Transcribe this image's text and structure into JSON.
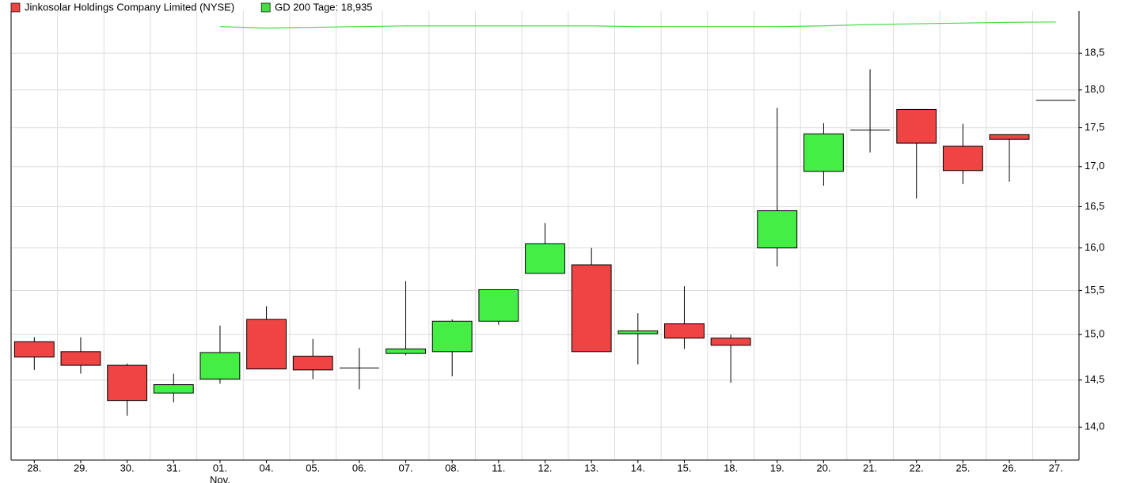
{
  "chart_data": {
    "type": "candlestick",
    "categories": [
      "28.",
      "29.",
      "30.",
      "31.",
      "01.",
      "04.",
      "05.",
      "06.",
      "07.",
      "08.",
      "11.",
      "12.",
      "13.",
      "14.",
      "15.",
      "18.",
      "19.",
      "20.",
      "21.",
      "22.",
      "25.",
      "26.",
      "27."
    ],
    "annotations": [
      "Nov."
    ],
    "series": [
      {
        "name": "Jinkosolar Holdings Company Limited (NYSE)",
        "color": "#ee4444",
        "up_color": "#44ee44",
        "open": [
          14.92,
          14.81,
          14.66,
          14.36,
          14.51,
          15.17,
          14.76,
          14.63,
          14.79,
          14.81,
          15.15,
          15.7,
          15.8,
          15.01,
          15.12,
          14.96,
          16.0,
          16.94,
          17.47,
          17.74,
          17.26,
          17.41,
          17.86
        ],
        "high": [
          14.97,
          14.97,
          14.68,
          14.57,
          15.1,
          15.32,
          14.95,
          14.85,
          15.61,
          15.17,
          15.51,
          16.3,
          16.0,
          15.24,
          15.55,
          15.0,
          17.76,
          17.56,
          18.28,
          17.74,
          17.55,
          17.41,
          17.86
        ],
        "low": [
          14.61,
          14.57,
          14.12,
          14.26,
          14.46,
          14.62,
          14.51,
          14.4,
          14.77,
          14.54,
          15.11,
          15.7,
          14.81,
          14.67,
          14.84,
          14.47,
          15.78,
          16.76,
          17.18,
          16.6,
          16.78,
          16.81,
          17.86
        ],
        "close": [
          14.75,
          14.66,
          14.28,
          14.45,
          14.8,
          14.62,
          14.61,
          14.63,
          14.84,
          15.15,
          15.51,
          16.05,
          14.81,
          15.04,
          14.96,
          14.88,
          16.45,
          17.42,
          17.47,
          17.3,
          16.95,
          17.35,
          17.86
        ]
      },
      {
        "name": "GD 200 Tage: 18,935",
        "type": "line",
        "color": "#44dd44",
        "values": [
          null,
          null,
          null,
          null,
          18.87,
          18.85,
          18.86,
          18.87,
          18.88,
          18.88,
          18.88,
          18.88,
          18.88,
          18.87,
          18.87,
          18.87,
          18.87,
          18.88,
          18.9,
          18.91,
          18.92,
          18.93,
          18.935
        ]
      }
    ],
    "ylim": [
      13.66,
      19.09
    ],
    "log_scale": true,
    "grid": true,
    "y_axis_side": "right",
    "yticks": [
      {
        "value": 14.0,
        "label": "14,0"
      },
      {
        "value": 14.5,
        "label": "14,5"
      },
      {
        "value": 15.0,
        "label": "15,0"
      },
      {
        "value": 15.5,
        "label": "15,5"
      },
      {
        "value": 16.0,
        "label": "16,0"
      },
      {
        "value": 16.5,
        "label": "16,5"
      },
      {
        "value": 17.0,
        "label": "17,0"
      },
      {
        "value": 17.5,
        "label": "17,5"
      },
      {
        "value": 18.0,
        "label": "18,0"
      },
      {
        "value": 18.5,
        "label": "18,5"
      }
    ]
  }
}
